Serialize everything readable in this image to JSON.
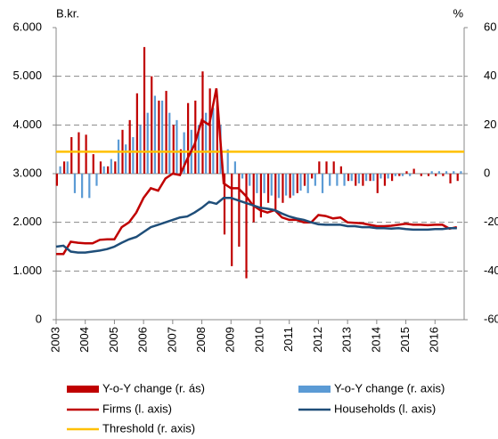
{
  "chart_data": {
    "type": "bar-line",
    "y_label": "B.kr.",
    "y2_label": "%",
    "x": [
      2003,
      2003.25,
      2003.5,
      2003.75,
      2004,
      2004.25,
      2004.5,
      2004.75,
      2005,
      2005.25,
      2005.5,
      2005.75,
      2006,
      2006.25,
      2006.5,
      2006.75,
      2007,
      2007.25,
      2007.5,
      2007.75,
      2008,
      2008.25,
      2008.5,
      2008.75,
      2009,
      2009.25,
      2009.5,
      2009.75,
      2010,
      2010.25,
      2010.5,
      2010.75,
      2011,
      2011.25,
      2011.5,
      2011.75,
      2012,
      2012.25,
      2012.5,
      2012.75,
      2013,
      2013.25,
      2013.5,
      2013.75,
      2014,
      2014.25,
      2014.5,
      2014.75,
      2015,
      2015.25,
      2015.5,
      2015.75,
      2016,
      2016.25,
      2016.5,
      2016.75
    ],
    "xlim": [
      2003,
      2017
    ],
    "xticks": [
      2003,
      2004,
      2005,
      2006,
      2007,
      2008,
      2009,
      2010,
      2011,
      2012,
      2013,
      2014,
      2015,
      2016
    ],
    "ylim": [
      0,
      6000
    ],
    "yticks": [
      0,
      {
        "value": 1000,
        "label": "1.000"
      },
      {
        "value": 2000,
        "label": "2.000"
      },
      {
        "value": 3000,
        "label": "3.000"
      },
      {
        "value": 4000,
        "label": "4.000"
      },
      {
        "value": 5000,
        "label": "5.000"
      },
      {
        "value": 6000,
        "label": "6.000"
      }
    ],
    "y2lim": [
      -60,
      60
    ],
    "y2ticks": [
      -60,
      -40,
      -20,
      0,
      20,
      40,
      60
    ],
    "grid": true,
    "series": [
      {
        "name": "Y-o-Y change (r. ás)",
        "type": "bar",
        "axis": "y2",
        "color": "#c00000",
        "values": [
          -5,
          5,
          15,
          17,
          16,
          8,
          5,
          3,
          5,
          18,
          22,
          33,
          52,
          40,
          30,
          34,
          20,
          10,
          29,
          30,
          42,
          35,
          30,
          -25,
          -38,
          -30,
          -43,
          -20,
          -18,
          -12,
          -15,
          -12,
          -10,
          -8,
          -5,
          -2,
          5,
          5,
          5,
          3,
          -3,
          -5,
          -5,
          -3,
          -8,
          -5,
          -3,
          -1,
          1,
          2,
          -1,
          -1,
          -1,
          -1,
          -4,
          -3
        ]
      },
      {
        "name": "Y-o-Y change (r. axis)",
        "type": "bar",
        "axis": "y2",
        "color": "#5b9bd5",
        "values": [
          3,
          5,
          -8,
          -10,
          -10,
          -5,
          3,
          6,
          14,
          12,
          15,
          20,
          25,
          32,
          30,
          25,
          22,
          17,
          18,
          20,
          25,
          27,
          20,
          10,
          5,
          -2,
          -5,
          -8,
          -8,
          -9,
          -10,
          -9,
          -9,
          -7,
          -8,
          -5,
          -8,
          -5,
          -5,
          -5,
          -3,
          -4,
          -3,
          -3,
          -2,
          -2,
          -1,
          -1,
          -1,
          0,
          0,
          1,
          1,
          1,
          1,
          1
        ]
      },
      {
        "name": "Firms (l. axis)",
        "type": "line",
        "color": "#c00000",
        "values": [
          1350,
          1350,
          1600,
          1580,
          1570,
          1570,
          1640,
          1650,
          1650,
          1900,
          2000,
          2200,
          2500,
          2700,
          2650,
          2900,
          3000,
          2970,
          3300,
          3600,
          4100,
          4000,
          4750,
          2800,
          2700,
          2700,
          2550,
          2350,
          2250,
          2200,
          2250,
          2100,
          2050,
          2050,
          2000,
          2000,
          2150,
          2130,
          2080,
          2100,
          2000,
          1990,
          1980,
          1950,
          1920,
          1920,
          1930,
          1950,
          1970,
          1950,
          1950,
          1940,
          1950,
          1950,
          1870,
          1900
        ]
      },
      {
        "name": "Households (l. axis)",
        "type": "line",
        "color": "#1f4e79",
        "values": [
          1500,
          1520,
          1400,
          1380,
          1380,
          1400,
          1420,
          1450,
          1500,
          1580,
          1650,
          1700,
          1800,
          1900,
          1950,
          2000,
          2050,
          2100,
          2120,
          2200,
          2300,
          2420,
          2380,
          2500,
          2500,
          2450,
          2400,
          2350,
          2300,
          2280,
          2250,
          2180,
          2120,
          2080,
          2050,
          2000,
          1960,
          1950,
          1950,
          1950,
          1920,
          1920,
          1900,
          1900,
          1880,
          1880,
          1870,
          1880,
          1860,
          1850,
          1850,
          1850,
          1860,
          1860,
          1880,
          1880
        ]
      }
    ],
    "threshold": {
      "name": "Threshold (r. axis)",
      "value": 9,
      "axis": "y2",
      "color": "#ffc000"
    }
  }
}
